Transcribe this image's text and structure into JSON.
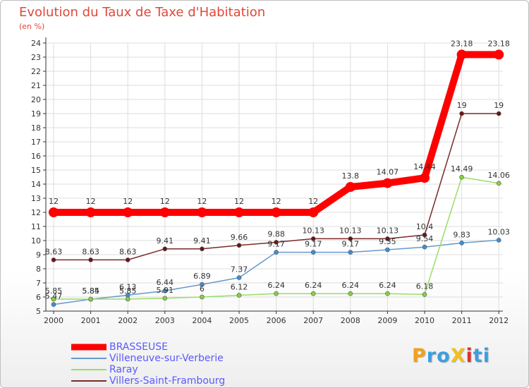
{
  "chart_data": {
    "type": "line",
    "title": "Evolution du Taux de Taxe d'Habitation",
    "ylabel": "(en %)",
    "xlabel": "",
    "x": [
      "2000",
      "2001",
      "2002",
      "2003",
      "2004",
      "2005",
      "2006",
      "2007",
      "2008",
      "2009",
      "2010",
      "2011",
      "2012"
    ],
    "ylim": [
      5,
      24
    ],
    "yticks": [
      5,
      6,
      7,
      8,
      9,
      10,
      11,
      12,
      13,
      14,
      15,
      16,
      17,
      18,
      19,
      20,
      21,
      22,
      23,
      24
    ],
    "grid": true,
    "legend_position": "bottom-left",
    "series": [
      {
        "name": "BRASSEUSE",
        "color": "#ff0000",
        "values": [
          12,
          12,
          12,
          12,
          12,
          12,
          12,
          12,
          13.8,
          14.07,
          14.44,
          23.18,
          23.18
        ],
        "labels": [
          "12",
          "12",
          "12",
          "12",
          "12",
          "12",
          "12",
          "12",
          "13.8",
          "14.07",
          "14.44",
          "23.18",
          "23.18"
        ]
      },
      {
        "name": "Villeneuve-sur-Verberie",
        "color": "#6699cc",
        "marker": "#3f8fd6",
        "values": [
          5.47,
          5.84,
          6.13,
          6.44,
          6.89,
          7.37,
          9.17,
          9.17,
          9.17,
          9.35,
          9.54,
          9.83,
          10.03
        ],
        "labels": [
          "5.47",
          "5.84",
          "6.13",
          "6.44",
          "6.89",
          "7.37",
          "9.17",
          "9.17",
          "9.17",
          "9.35",
          "9.54",
          "9.83",
          "10.03"
        ]
      },
      {
        "name": "Raray",
        "color": "#99dd66",
        "marker": "#88d040",
        "values": [
          5.85,
          5.85,
          5.85,
          5.91,
          6,
          6.12,
          6.24,
          6.24,
          6.24,
          6.24,
          6.18,
          14.49,
          14.06
        ],
        "labels": [
          "5.85",
          "5.85",
          "5.85",
          "5.91",
          "6",
          "6.12",
          "6.24",
          "6.24",
          "6.24",
          "6.24",
          "6.18",
          "14.49",
          "14.06"
        ]
      },
      {
        "name": "Villers-Saint-Frambourg",
        "color": "#7a2a2a",
        "marker": "#6a1515",
        "values": [
          8.63,
          8.63,
          8.63,
          9.41,
          9.41,
          9.66,
          9.88,
          10.13,
          10.13,
          10.13,
          10.4,
          19,
          19
        ],
        "labels": [
          "8.63",
          "8.63",
          "8.63",
          "9.41",
          "9.41",
          "9.66",
          "9.88",
          "10.13",
          "10.13",
          "10.13",
          "10.4",
          "19",
          "19"
        ]
      }
    ]
  },
  "logo": {
    "text": "ProXiti",
    "letters": [
      "P",
      "r",
      "o",
      "X",
      "i",
      "t",
      "i"
    ],
    "colors": [
      "#f0a020",
      "#3aa0e0",
      "#3aa0e0",
      "#f0c020",
      "#e03030",
      "#3aa0e0",
      "#3aa0e0"
    ]
  },
  "colors": {
    "title": "#e0483a",
    "axis": "#333333",
    "grid": "#dddddd",
    "legend_text": "#5a5aff"
  }
}
